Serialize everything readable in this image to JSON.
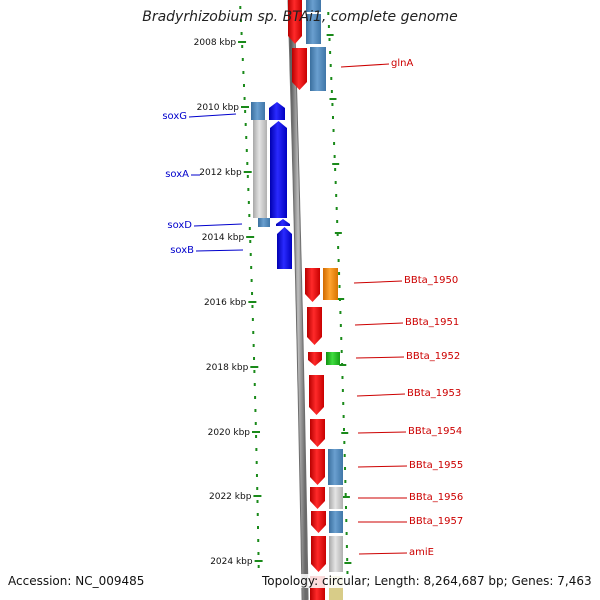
{
  "title": "Bradyrhizobium sp. BTAi1, complete genome",
  "footer": {
    "accession": "Accession: NC_009485",
    "topology": "Topology: circular; Length: 8,264,687 bp; Genes: 7,463"
  },
  "ticks": [
    "2008 kbp",
    "2010 kbp",
    "2012 kbp",
    "2014 kbp",
    "2016 kbp",
    "2018 kbp",
    "2020 kbp",
    "2022 kbp",
    "2024 kbp"
  ],
  "genes_left": [
    "soxG",
    "soxA",
    "soxD",
    "soxB"
  ],
  "genes_right": [
    "glnA",
    "BBta_1950",
    "BBta_1951",
    "BBta_1952",
    "BBta_1953",
    "BBta_1954",
    "BBta_1955",
    "BBta_1956",
    "BBta_1957",
    "amiE"
  ],
  "colors": {
    "forward": "#ee0000",
    "reverse": "#0000ee",
    "cog_blue": "#4f86b8",
    "cog_gray": "#c8c8c8",
    "orange": "#f08c10",
    "green": "#22bb22",
    "tick_green": "#1a8a1a",
    "backbone": "#8a8a8a",
    "label_red": "#cc0000",
    "label_blue": "#0000cc"
  }
}
